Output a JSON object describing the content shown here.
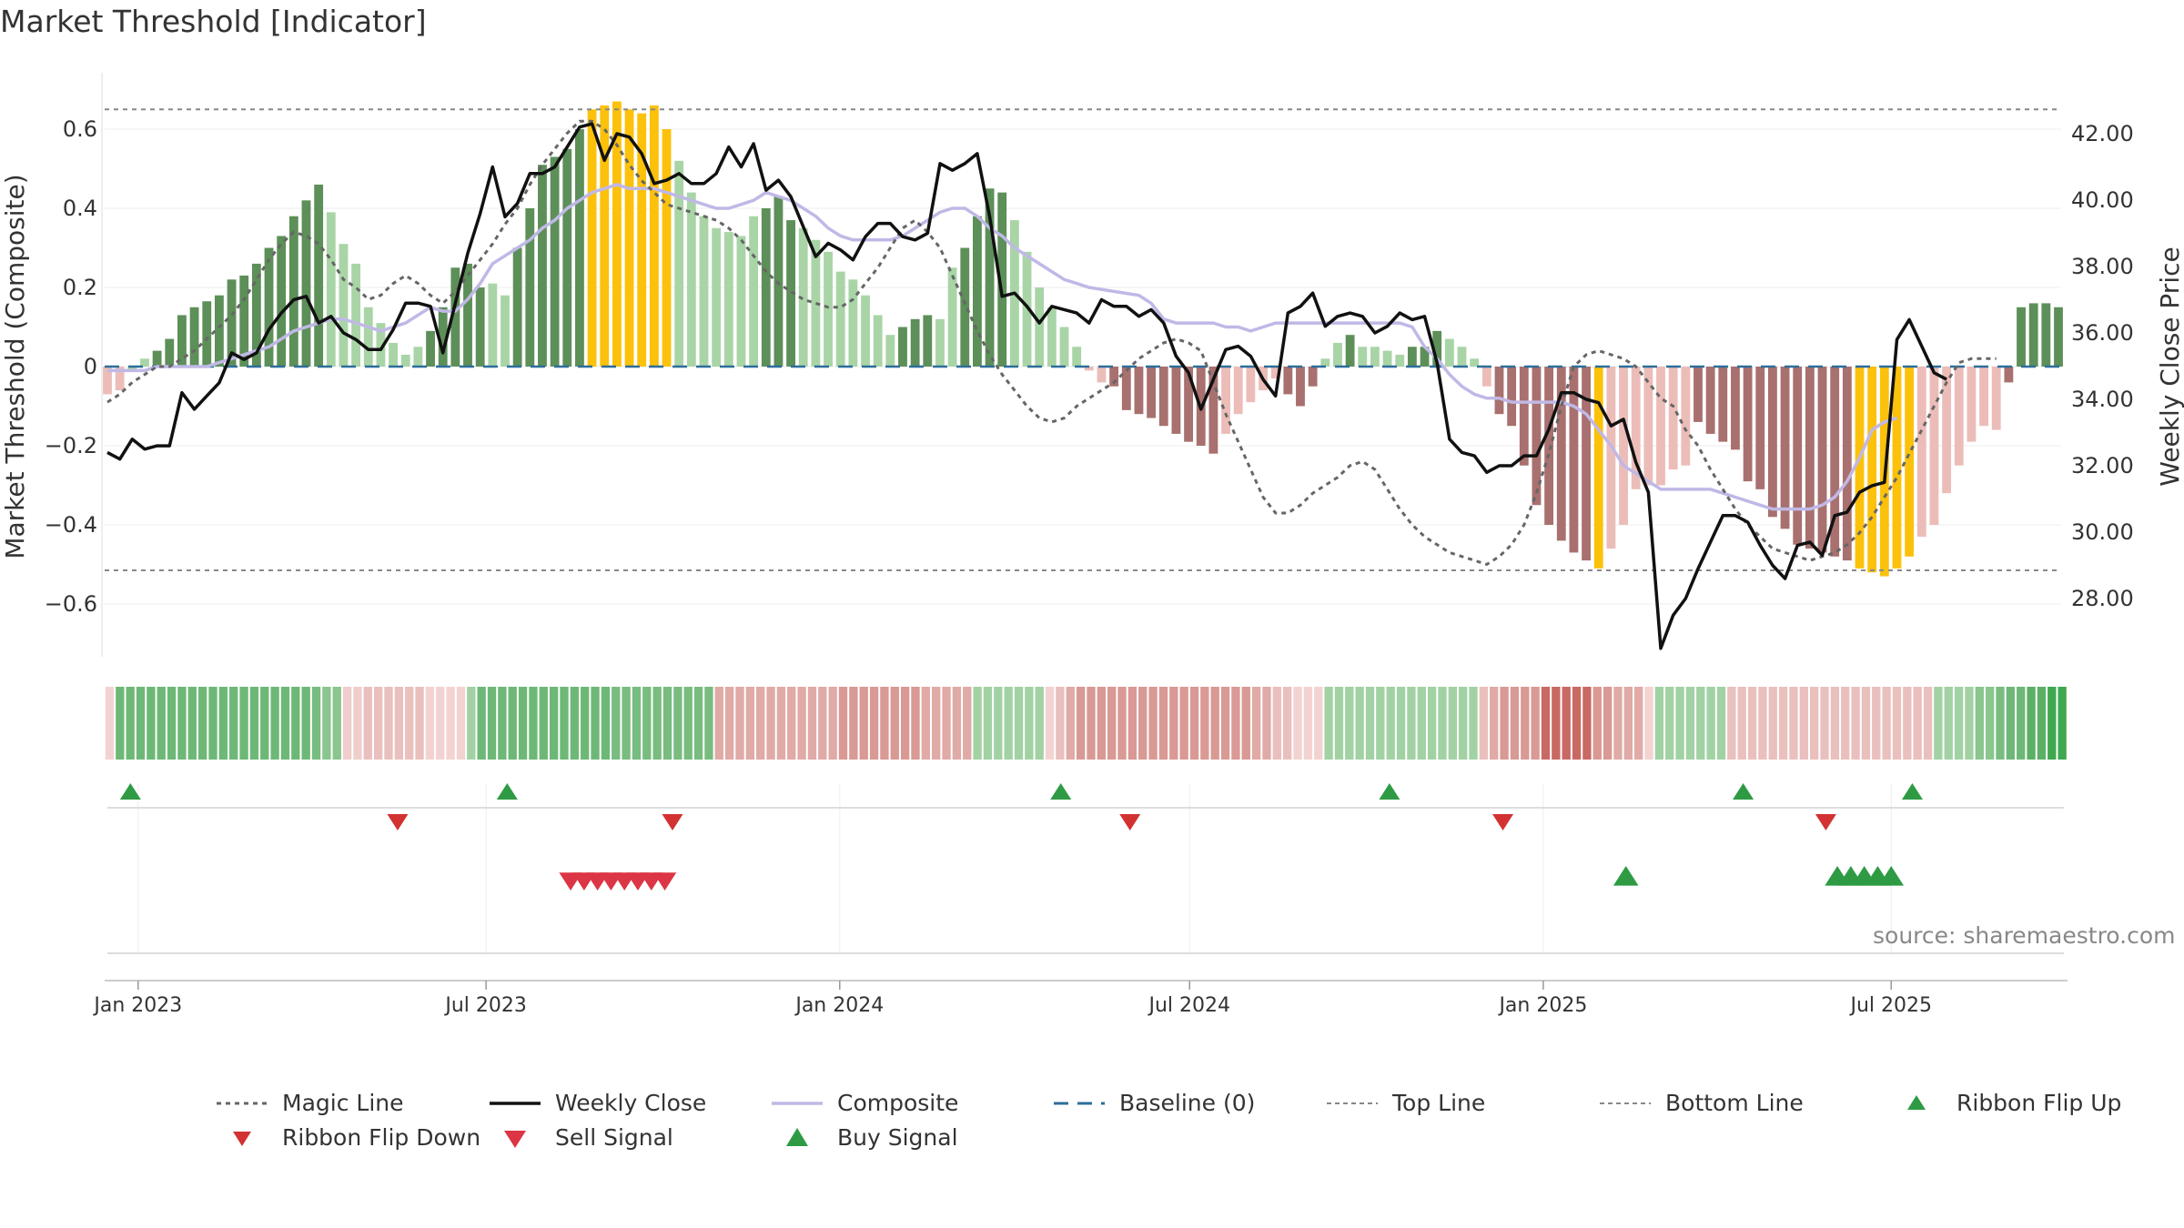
{
  "title": "Market Threshold [Indicator]",
  "source": "source: sharemaestro.com",
  "colors": {
    "strong_green": "#5d8f58",
    "light_green": "#a9d5a6",
    "yellow": "#fcc10b",
    "strong_red": "#a8706e",
    "light_red": "#ecbdb8",
    "close_line": "#111111",
    "composite_line": "#c0b8e6",
    "magic_line": "#666666",
    "baseline": "#2c6e9b",
    "signal_green": "#2e9b44",
    "signal_red": "#d23232",
    "sell_red": "#dc3545"
  },
  "chart_data": [
    {
      "type": "bar",
      "name": "main-panel",
      "ylabel": "Market Threshold (Composite)",
      "y2label": "Weekly Close Price",
      "ylim": [
        -0.73,
        0.73
      ],
      "y2lim": [
        26.15,
        43.65
      ],
      "yticks": [
        0.6,
        0.4,
        0.2,
        0,
        -0.2,
        -0.4,
        -0.6
      ],
      "ytick_labels": [
        "0.6",
        "0.4",
        "0.2",
        "0",
        "−0.2",
        "−0.4",
        "−0.6"
      ],
      "y2ticks": [
        42,
        40,
        38,
        36,
        34,
        32,
        30,
        28
      ],
      "y2tick_labels": [
        "42.00",
        "40.00",
        "38.00",
        "36.00",
        "34.00",
        "32.00",
        "30.00",
        "28.00"
      ],
      "top_line": 0.65,
      "bottom_line": -0.515,
      "bars": [
        -0.07,
        -0.06,
        -0.01,
        0.02,
        0.04,
        0.07,
        0.13,
        0.15,
        0.165,
        0.18,
        0.22,
        0.23,
        0.26,
        0.3,
        0.33,
        0.38,
        0.42,
        0.46,
        0.39,
        0.31,
        0.26,
        0.15,
        0.11,
        0.06,
        0.03,
        0.05,
        0.09,
        0.15,
        0.25,
        0.26,
        0.2,
        0.21,
        0.18,
        0.3,
        0.4,
        0.51,
        0.53,
        0.55,
        0.6,
        0.65,
        0.66,
        0.67,
        0.65,
        0.64,
        0.66,
        0.6,
        0.52,
        0.44,
        0.38,
        0.35,
        0.34,
        0.33,
        0.38,
        0.4,
        0.43,
        0.37,
        0.35,
        0.32,
        0.29,
        0.24,
        0.22,
        0.18,
        0.13,
        0.08,
        0.1,
        0.12,
        0.13,
        0.12,
        0.25,
        0.3,
        0.38,
        0.45,
        0.44,
        0.37,
        0.29,
        0.2,
        0.15,
        0.1,
        0.05,
        -0.01,
        -0.04,
        -0.05,
        -0.11,
        -0.12,
        -0.13,
        -0.15,
        -0.17,
        -0.19,
        -0.2,
        -0.22,
        -0.17,
        -0.12,
        -0.09,
        -0.06,
        -0.03,
        -0.07,
        -0.1,
        -0.05,
        0.02,
        0.06,
        0.08,
        0.05,
        0.05,
        0.04,
        0.03,
        0.05,
        0.05,
        0.09,
        0.07,
        0.05,
        0.02,
        -0.05,
        -0.12,
        -0.15,
        -0.25,
        -0.35,
        -0.4,
        -0.44,
        -0.47,
        -0.49,
        -0.51,
        -0.46,
        -0.4,
        -0.31,
        -0.3,
        -0.3,
        -0.26,
        -0.25,
        -0.14,
        -0.17,
        -0.19,
        -0.21,
        -0.29,
        -0.31,
        -0.38,
        -0.41,
        -0.45,
        -0.46,
        -0.47,
        -0.48,
        -0.49,
        -0.51,
        -0.52,
        -0.53,
        -0.51,
        -0.48,
        -0.43,
        -0.4,
        -0.32,
        -0.25,
        -0.19,
        -0.15,
        -0.16,
        -0.04,
        0.15,
        0.16,
        0.16,
        0.15
      ],
      "bar_colors": [
        "lr",
        "lr",
        "lg",
        "lg",
        "sg",
        "sg",
        "sg",
        "sg",
        "sg",
        "sg",
        "sg",
        "sg",
        "sg",
        "sg",
        "sg",
        "sg",
        "sg",
        "sg",
        "lg",
        "lg",
        "lg",
        "lg",
        "lg",
        "lg",
        "lg",
        "lg",
        "sg",
        "sg",
        "sg",
        "sg",
        "sg",
        "lg",
        "lg",
        "sg",
        "sg",
        "sg",
        "sg",
        "sg",
        "sg",
        "y",
        "y",
        "y",
        "y",
        "y",
        "y",
        "y",
        "lg",
        "lg",
        "lg",
        "lg",
        "lg",
        "lg",
        "lg",
        "sg",
        "sg",
        "sg",
        "lg",
        "lg",
        "lg",
        "lg",
        "lg",
        "lg",
        "lg",
        "lg",
        "sg",
        "sg",
        "sg",
        "lg",
        "lg",
        "sg",
        "sg",
        "sg",
        "sg",
        "lg",
        "lg",
        "lg",
        "lg",
        "lg",
        "lg",
        "lr",
        "lr",
        "sr",
        "sr",
        "sr",
        "sr",
        "sr",
        "sr",
        "sr",
        "sr",
        "sr",
        "lr",
        "lr",
        "lr",
        "lr",
        "lr",
        "sr",
        "sr",
        "sr",
        "lg",
        "lg",
        "sg",
        "lg",
        "lg",
        "lg",
        "lg",
        "sg",
        "sg",
        "sg",
        "lg",
        "lg",
        "lg",
        "lr",
        "sr",
        "sr",
        "sr",
        "sr",
        "sr",
        "sr",
        "sr",
        "sr",
        "y",
        "lr",
        "lr",
        "lr",
        "lr",
        "lr",
        "lr",
        "lr",
        "sr",
        "sr",
        "sr",
        "sr",
        "sr",
        "sr",
        "sr",
        "sr",
        "sr",
        "sr",
        "sr",
        "sr",
        "sr",
        "y",
        "y",
        "y",
        "y",
        "y",
        "lr",
        "lr",
        "lr",
        "lr",
        "lr",
        "lr",
        "lr",
        "sr",
        "sg",
        "sg",
        "sg",
        "sg"
      ],
      "weekly_close": [
        32.4,
        32.2,
        32.8,
        32.5,
        32.6,
        32.6,
        34.2,
        33.7,
        34.1,
        34.5,
        35.4,
        35.2,
        35.4,
        36.1,
        36.6,
        37.0,
        37.1,
        36.3,
        36.5,
        36.0,
        35.8,
        35.5,
        35.5,
        36.1,
        36.9,
        36.9,
        36.8,
        35.4,
        36.9,
        38.4,
        39.6,
        41.0,
        39.5,
        39.9,
        40.8,
        40.8,
        41.0,
        41.6,
        42.2,
        42.3,
        41.2,
        42.0,
        41.9,
        41.4,
        40.5,
        40.6,
        40.8,
        40.5,
        40.5,
        40.8,
        41.6,
        41.0,
        41.7,
        40.3,
        40.6,
        40.1,
        39.2,
        38.3,
        38.7,
        38.5,
        38.2,
        38.9,
        39.3,
        39.3,
        38.9,
        38.8,
        39.0,
        41.1,
        40.9,
        41.1,
        41.4,
        39.5,
        37.1,
        37.2,
        36.8,
        36.3,
        36.8,
        36.7,
        36.6,
        36.3,
        37.0,
        36.8,
        36.8,
        36.5,
        36.7,
        36.3,
        35.3,
        34.8,
        33.7,
        34.6,
        35.5,
        35.6,
        35.3,
        34.6,
        34.1,
        36.6,
        36.8,
        37.2,
        36.2,
        36.5,
        36.6,
        36.5,
        36.0,
        36.2,
        36.6,
        36.4,
        36.5,
        35.1,
        32.8,
        32.4,
        32.3,
        31.8,
        32.0,
        32.0,
        32.3,
        32.3,
        33.1,
        34.2,
        34.2,
        34.0,
        33.9,
        33.2,
        33.4,
        32.1,
        31.2,
        26.5,
        27.5,
        28.0,
        28.9,
        29.7,
        30.5,
        30.5,
        30.3,
        29.6,
        29.0,
        28.6,
        29.6,
        29.7,
        29.3,
        30.5,
        30.6,
        31.2,
        31.4,
        31.5,
        35.8,
        36.4,
        35.6,
        34.8,
        34.6
      ],
      "composite": [
        -0.01,
        -0.01,
        -0.01,
        -0.01,
        0.0,
        0.0,
        0.0,
        0.0,
        0.0,
        0.01,
        0.02,
        0.03,
        0.04,
        0.05,
        0.07,
        0.09,
        0.1,
        0.11,
        0.12,
        0.12,
        0.11,
        0.1,
        0.09,
        0.1,
        0.11,
        0.13,
        0.15,
        0.14,
        0.14,
        0.17,
        0.21,
        0.26,
        0.28,
        0.3,
        0.32,
        0.35,
        0.37,
        0.4,
        0.42,
        0.44,
        0.45,
        0.46,
        0.45,
        0.45,
        0.45,
        0.44,
        0.43,
        0.42,
        0.41,
        0.4,
        0.4,
        0.41,
        0.42,
        0.44,
        0.43,
        0.42,
        0.4,
        0.38,
        0.35,
        0.33,
        0.32,
        0.32,
        0.32,
        0.32,
        0.33,
        0.35,
        0.37,
        0.39,
        0.4,
        0.4,
        0.38,
        0.35,
        0.33,
        0.3,
        0.28,
        0.26,
        0.24,
        0.22,
        0.21,
        0.2,
        0.195,
        0.19,
        0.185,
        0.18,
        0.16,
        0.12,
        0.11,
        0.11,
        0.11,
        0.11,
        0.1,
        0.1,
        0.09,
        0.1,
        0.11,
        0.11,
        0.11,
        0.11,
        0.11,
        0.11,
        0.11,
        0.11,
        0.11,
        0.11,
        0.11,
        0.1,
        0.05,
        0.02,
        -0.02,
        -0.05,
        -0.07,
        -0.08,
        -0.08,
        -0.09,
        -0.09,
        -0.09,
        -0.09,
        -0.09,
        -0.1,
        -0.12,
        -0.16,
        -0.2,
        -0.25,
        -0.27,
        -0.29,
        -0.31,
        -0.31,
        -0.31,
        -0.31,
        -0.31,
        -0.32,
        -0.33,
        -0.34,
        -0.35,
        -0.36,
        -0.36,
        -0.36,
        -0.36,
        -0.35,
        -0.33,
        -0.29,
        -0.23,
        -0.16,
        -0.14,
        -0.13
      ],
      "magic_line": [
        -0.09,
        -0.07,
        -0.04,
        -0.02,
        0.0,
        0.0,
        0.02,
        0.04,
        0.07,
        0.1,
        0.13,
        0.17,
        0.22,
        0.27,
        0.31,
        0.34,
        0.33,
        0.31,
        0.27,
        0.22,
        0.2,
        0.17,
        0.18,
        0.21,
        0.23,
        0.21,
        0.18,
        0.16,
        0.19,
        0.23,
        0.27,
        0.31,
        0.36,
        0.4,
        0.46,
        0.51,
        0.55,
        0.59,
        0.62,
        0.62,
        0.6,
        0.56,
        0.51,
        0.47,
        0.44,
        0.41,
        0.4,
        0.39,
        0.38,
        0.37,
        0.35,
        0.32,
        0.28,
        0.24,
        0.21,
        0.19,
        0.17,
        0.16,
        0.15,
        0.15,
        0.17,
        0.21,
        0.25,
        0.3,
        0.35,
        0.37,
        0.34,
        0.3,
        0.23,
        0.16,
        0.09,
        0.03,
        -0.02,
        -0.06,
        -0.1,
        -0.13,
        -0.14,
        -0.13,
        -0.1,
        -0.08,
        -0.06,
        -0.04,
        -0.01,
        0.02,
        0.04,
        0.06,
        0.07,
        0.06,
        0.04,
        -0.04,
        -0.12,
        -0.19,
        -0.26,
        -0.33,
        -0.37,
        -0.37,
        -0.35,
        -0.32,
        -0.3,
        -0.28,
        -0.25,
        -0.24,
        -0.26,
        -0.31,
        -0.36,
        -0.4,
        -0.43,
        -0.45,
        -0.47,
        -0.48,
        -0.49,
        -0.5,
        -0.48,
        -0.45,
        -0.4,
        -0.32,
        -0.22,
        -0.1,
        0.0,
        0.03,
        0.04,
        0.03,
        0.02,
        0.0,
        -0.04,
        -0.08,
        -0.1,
        -0.16,
        -0.2,
        -0.26,
        -0.31,
        -0.36,
        -0.4,
        -0.43,
        -0.46,
        -0.47,
        -0.48,
        -0.49,
        -0.48,
        -0.47,
        -0.45,
        -0.42,
        -0.38,
        -0.33,
        -0.28,
        -0.22,
        -0.16,
        -0.1,
        -0.04,
        0.01,
        0.02,
        0.02,
        0.02
      ],
      "baseline": 0
    },
    {
      "type": "heatmap",
      "name": "ribbon",
      "cell_colors": [
        "#f3d3d1",
        "#6eb877",
        "#6eb877",
        "#6eb877",
        "#6eb877",
        "#6eb877",
        "#6eb877",
        "#6eb877",
        "#6eb877",
        "#6eb877",
        "#6eb877",
        "#6eb877",
        "#6eb877",
        "#6eb877",
        "#6eb877",
        "#6eb877",
        "#6eb877",
        "#6eb877",
        "#6eb877",
        "#6eb877",
        "#79bc80",
        "#8ac68e",
        "#8ac68e",
        "#efcecb",
        "#efcecb",
        "#e9c0bd",
        "#e9c0bd",
        "#e9c0bd",
        "#e9c0bd",
        "#e9c0bd",
        "#e9c0bd",
        "#f3d3d1",
        "#f3d3d1",
        "#f3d3d1",
        "#f3d3d1",
        "#a2d2a4",
        "#6eb877",
        "#6eb877",
        "#6eb877",
        "#6eb877",
        "#6eb877",
        "#6eb877",
        "#6eb877",
        "#6eb877",
        "#6eb877",
        "#6eb877",
        "#6eb877",
        "#6eb877",
        "#6eb877",
        "#79bc80",
        "#79bc80",
        "#79bc80",
        "#79bc80",
        "#79bc80",
        "#79bc80",
        "#79bc80",
        "#79bc80",
        "#79bc80",
        "#79bc80",
        "#e0aaa6",
        "#e0aaa6",
        "#e0aaa6",
        "#e0aaa6",
        "#e0aaa6",
        "#e0aaa6",
        "#e0aaa6",
        "#e0aaa6",
        "#e0aaa6",
        "#e0aaa6",
        "#e0aaa6",
        "#e0aaa6",
        "#d99994",
        "#d99994",
        "#d99994",
        "#d99994",
        "#d99994",
        "#d99994",
        "#d99994",
        "#d99994",
        "#e0aaa6",
        "#e0aaa6",
        "#e0aaa6",
        "#e0aaa6",
        "#e0aaa6",
        "#a2d2a4",
        "#a2d2a4",
        "#a2d2a4",
        "#a2d2a4",
        "#a2d2a4",
        "#a2d2a4",
        "#a2d2a4",
        "#f3d3d1",
        "#e9c0bd",
        "#e0aaa6",
        "#d99994",
        "#d99994",
        "#d99994",
        "#d99994",
        "#d99994",
        "#d99994",
        "#d99994",
        "#d99994",
        "#d99994",
        "#d99994",
        "#d99994",
        "#d99994",
        "#d99994",
        "#d99994",
        "#d99994",
        "#d99994",
        "#d99994",
        "#e0aaa6",
        "#e0aaa6",
        "#e9c0bd",
        "#e9c0bd",
        "#f3d3d1",
        "#f3d3d1",
        "#f3d3d1",
        "#a2d2a4",
        "#a2d2a4",
        "#a2d2a4",
        "#a2d2a4",
        "#a2d2a4",
        "#a2d2a4",
        "#a2d2a4",
        "#a2d2a4",
        "#a2d2a4",
        "#a2d2a4",
        "#a2d2a4",
        "#a2d2a4",
        "#a2d2a4",
        "#a2d2a4",
        "#a2d2a4",
        "#e9c0bd",
        "#e0aaa6",
        "#d99994",
        "#d99994",
        "#d99994",
        "#d99994",
        "#c96964",
        "#c96964",
        "#c96964",
        "#c96964",
        "#c96964",
        "#d99994",
        "#d99994",
        "#e0aaa6",
        "#e0aaa6",
        "#e0aaa6",
        "#f3d3d1",
        "#a2d2a4",
        "#a2d2a4",
        "#a2d2a4",
        "#a2d2a4",
        "#a2d2a4",
        "#a2d2a4",
        "#a2d2a4",
        "#e9c0bd",
        "#e9c0bd",
        "#e9c0bd",
        "#e9c0bd",
        "#e9c0bd",
        "#e9c0bd",
        "#e9c0bd",
        "#e9c0bd",
        "#e9c0bd",
        "#e9c0bd",
        "#e9c0bd",
        "#e9c0bd",
        "#e9c0bd",
        "#e9c0bd",
        "#e9c0bd",
        "#e9c0bd",
        "#e9c0bd",
        "#e9c0bd",
        "#e9c0bd",
        "#e9c0bd",
        "#a2d2a4",
        "#a2d2a4",
        "#a2d2a4",
        "#a2d2a4",
        "#8ac68e",
        "#8ac68e",
        "#79bc80",
        "#6eb877",
        "#6eb877",
        "#5bb065",
        "#5bb065",
        "#3fa84f",
        "#3fa84f"
      ]
    },
    {
      "type": "scatter",
      "name": "signals",
      "x_axis_dates": [
        "2022-12-16",
        "2025-09-26"
      ],
      "xticks": [
        "2023-01-01",
        "2023-07-01",
        "2024-01-01",
        "2024-07-01",
        "2025-01-01",
        "2025-07-01"
      ],
      "xtick_labels": [
        "Jan 2023",
        "Jul 2023",
        "Jan 2024",
        "Jul 2024",
        "Jan 2025",
        "Jul 2025"
      ],
      "ribbon_flip_up": [
        "2022-12-28",
        "2023-07-12",
        "2024-04-25",
        "2024-10-13",
        "2025-04-15",
        "2025-07-12"
      ],
      "ribbon_flip_down": [
        "2023-05-16",
        "2023-10-06",
        "2024-05-31",
        "2024-12-11",
        "2025-05-28"
      ],
      "sell_signal": [
        "2023-08-14",
        "2023-08-21",
        "2023-08-28",
        "2023-09-04",
        "2023-09-11",
        "2023-09-18",
        "2023-09-25",
        "2023-10-02"
      ],
      "buy_signal": [
        "2025-02-13",
        "2025-06-03",
        "2025-06-10",
        "2025-06-17",
        "2025-06-24",
        "2025-07-01"
      ]
    }
  ],
  "legend": {
    "items": [
      {
        "label": "Magic Line",
        "swatch": "dotted-line"
      },
      {
        "label": "Weekly Close",
        "swatch": "solid-line"
      },
      {
        "label": "Composite",
        "swatch": "composite-line"
      },
      {
        "label": "Baseline (0)",
        "swatch": "dashed-line"
      },
      {
        "label": "Top Line",
        "swatch": "thin-dashed-line"
      },
      {
        "label": "Bottom Line",
        "swatch": "thin-dashed-line"
      },
      {
        "label": "Ribbon Flip Up",
        "swatch": "triangle-up-green"
      },
      {
        "label": "Ribbon Flip Down",
        "swatch": "triangle-down-red"
      },
      {
        "label": "Sell Signal",
        "swatch": "triangle-down-sell"
      },
      {
        "label": "Buy Signal",
        "swatch": "triangle-up-buy"
      }
    ]
  }
}
